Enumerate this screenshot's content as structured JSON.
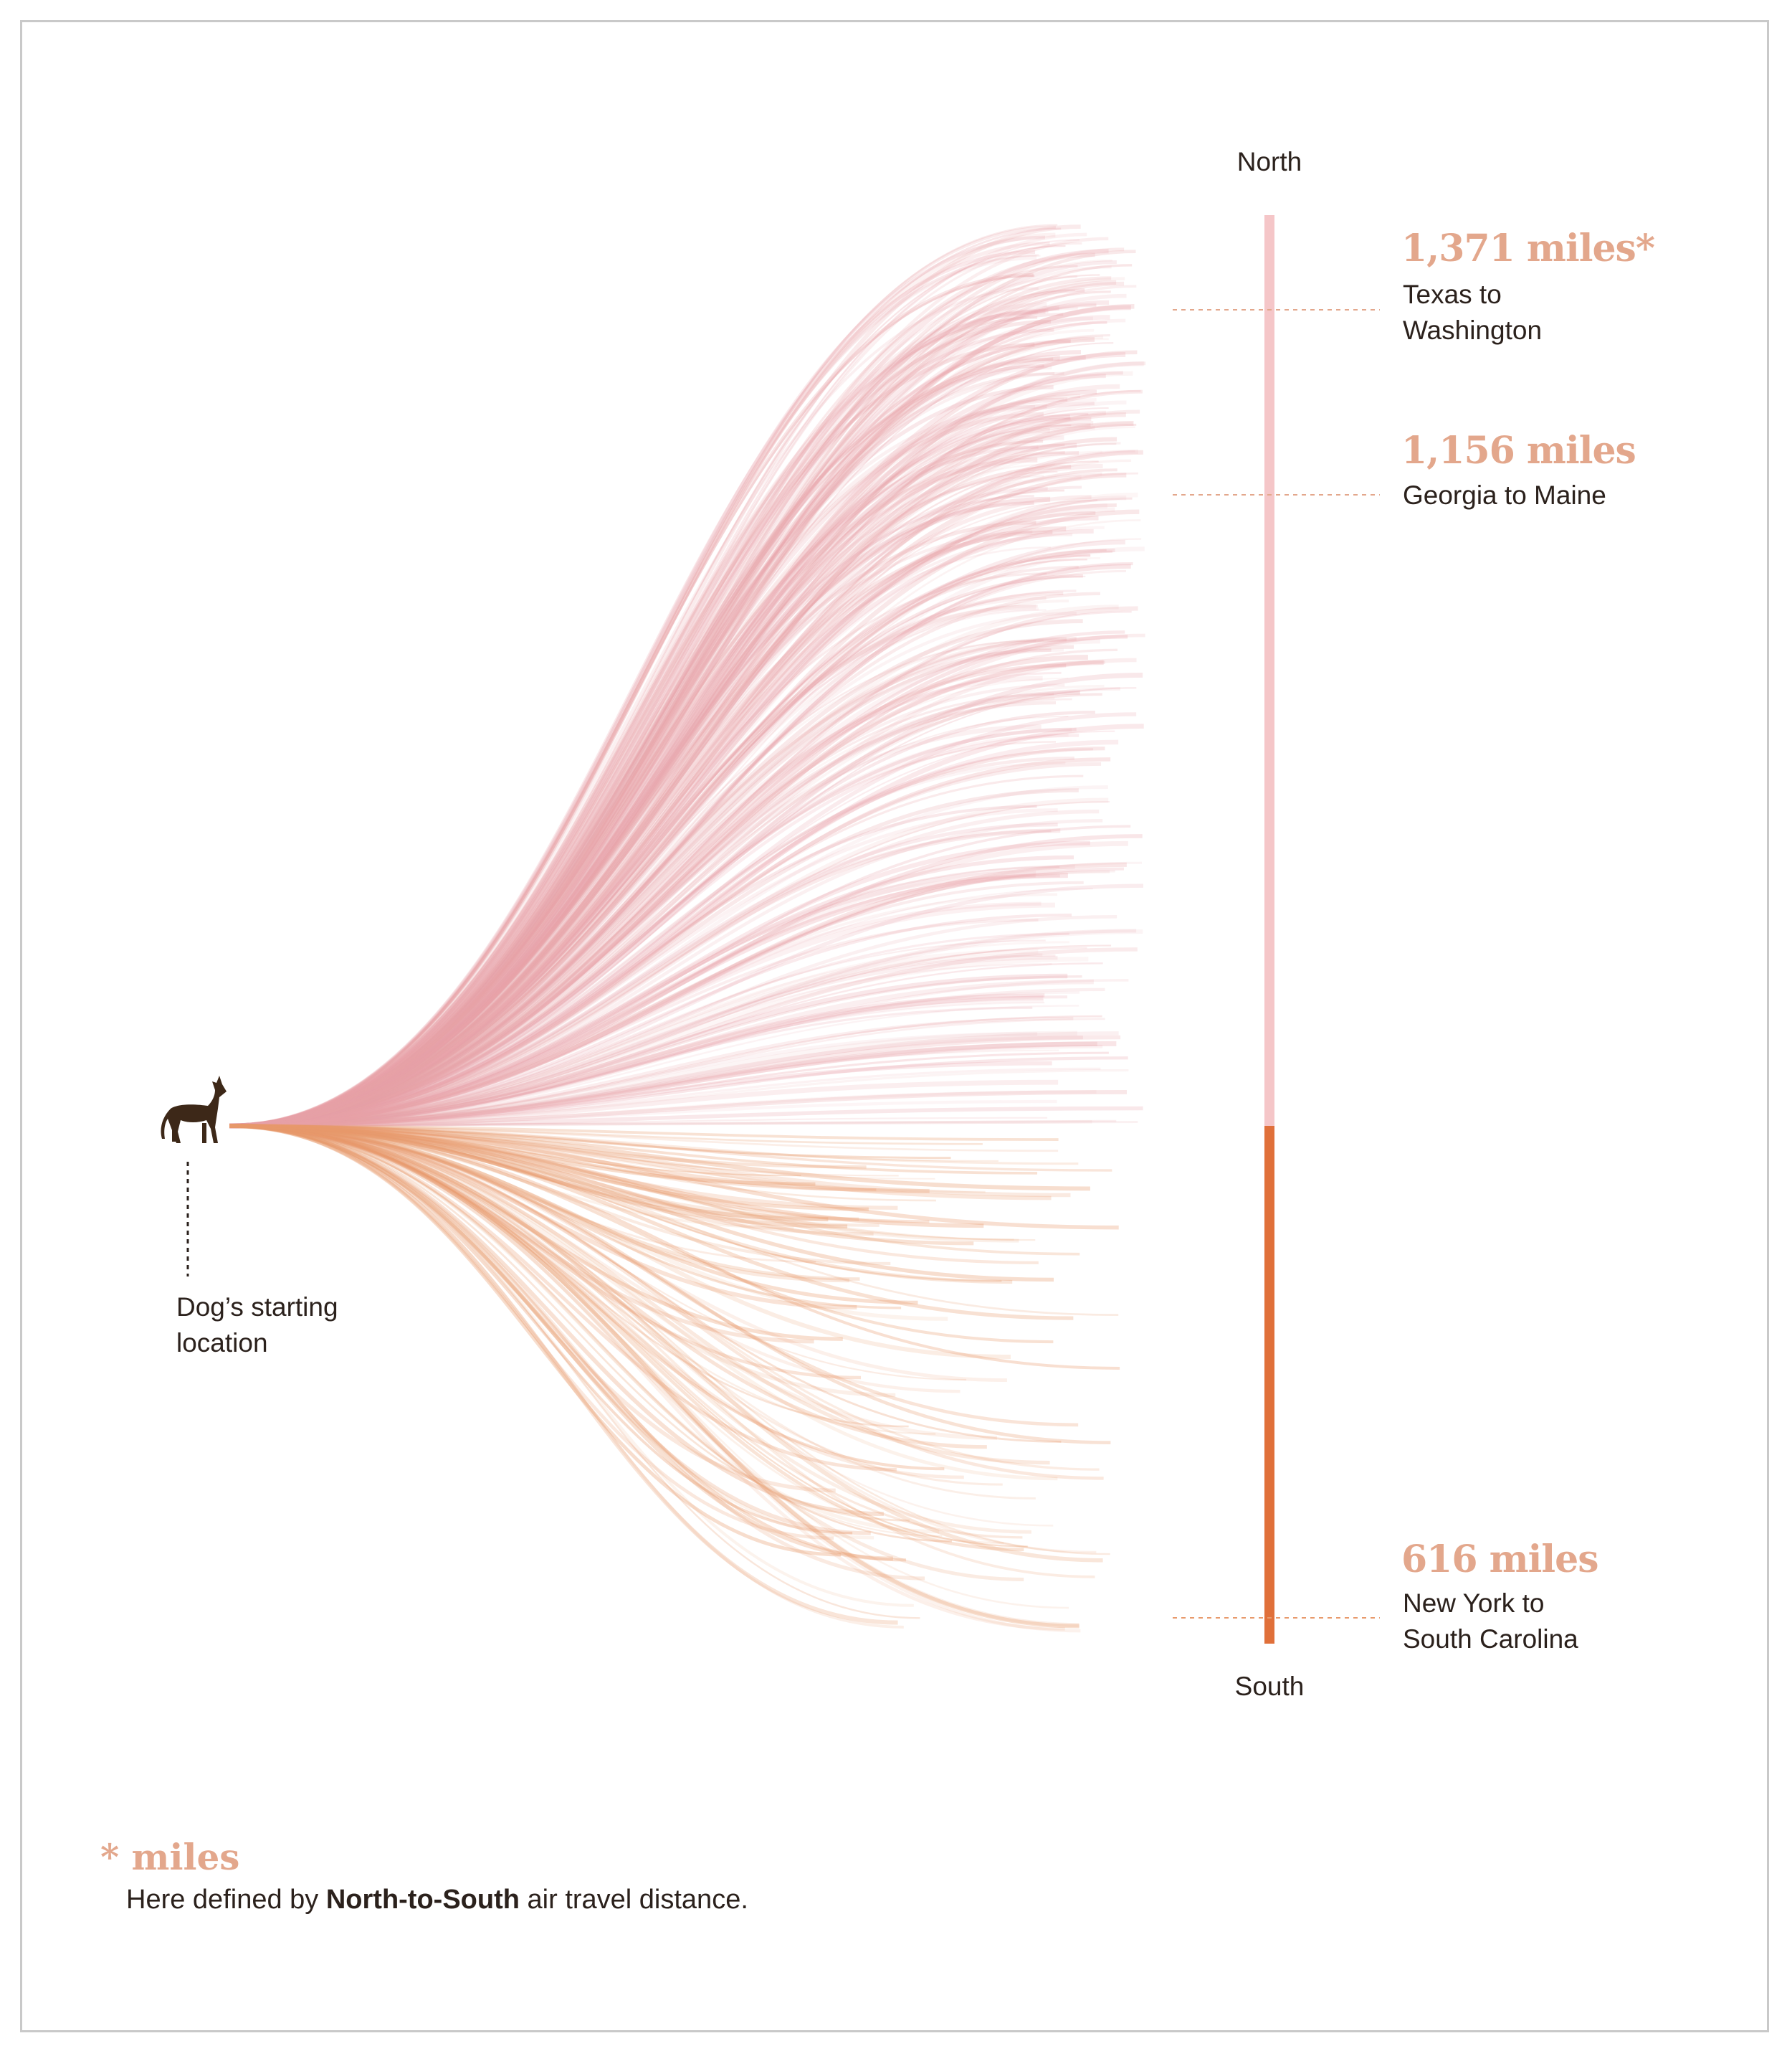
{
  "chart_data": {
    "type": "line",
    "origin_label": "Dog’s starting location",
    "origin_label_lines": [
      "Dog’s starting",
      "location"
    ],
    "axis": {
      "top_label": "North",
      "bottom_label": "South"
    },
    "annotations": [
      {
        "value_label": "1,371 miles*",
        "desc_lines": [
          "Texas to",
          "Washington"
        ],
        "miles_north": 1371
      },
      {
        "value_label": "1,156 miles",
        "desc_lines": [
          "Georgia to Maine"
        ],
        "miles_north": 1156
      },
      {
        "value_label": "616 miles",
        "desc_lines": [
          "New York to",
          "South Carolina"
        ],
        "miles_south": 616
      }
    ],
    "series": [
      {
        "direction": "north",
        "color": "#e8a2a8"
      },
      {
        "direction": "south",
        "color": "#e89a6c"
      }
    ],
    "ylim_miles": [
      -616,
      1371
    ]
  },
  "footnote": {
    "star_title": "* miles",
    "text_before": "Here defined by ",
    "text_bold": "North-to-South",
    "text_after": " air travel distance."
  },
  "colors": {
    "north_bar": "#f5c6c8",
    "south_bar": "#e0703a",
    "label_accent": "#e3a78c",
    "dog": "#3d2818"
  },
  "icons": {
    "origin": "dog-icon"
  }
}
